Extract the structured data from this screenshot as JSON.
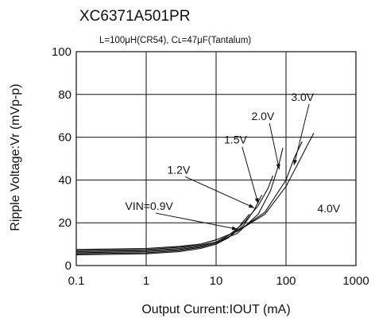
{
  "header": {
    "title": "XC6371A501PR",
    "conditions": "L=100μH(CR54),  Cʟ=47μF(Tantalum)"
  },
  "chart_data": {
    "type": "line",
    "xlabel": "Output Current:IOUT (mA)",
    "ylabel": "Ripple Voltage:Vr  (mVp-p)",
    "xscale": "log",
    "xlim": [
      0.1,
      1000
    ],
    "ylim": [
      0,
      100
    ],
    "xticks": [
      "0.1",
      "1",
      "10",
      "100",
      "1000"
    ],
    "yticks": [
      "0",
      "20",
      "40",
      "60",
      "80",
      "100"
    ],
    "grid": true,
    "series": [
      {
        "name": "VIN=0.9V",
        "x": [
          0.1,
          1,
          3,
          6,
          10,
          15,
          20,
          25,
          30
        ],
        "y": [
          5,
          5.5,
          6.5,
          8,
          10,
          13,
          17,
          21,
          24
        ]
      },
      {
        "name": "1.2V",
        "x": [
          0.1,
          1,
          3,
          6,
          10,
          15,
          25,
          35,
          45
        ],
        "y": [
          5.5,
          6,
          7,
          8.5,
          10.5,
          13,
          19,
          26,
          33
        ]
      },
      {
        "name": "1.5V",
        "x": [
          0.1,
          1,
          3,
          6,
          10,
          15,
          25,
          40,
          55,
          65
        ],
        "y": [
          6,
          6.5,
          7.5,
          9,
          11,
          14,
          20,
          28,
          36,
          42
        ]
      },
      {
        "name": "2.0V",
        "x": [
          0.1,
          1,
          3,
          6,
          10,
          20,
          40,
          60,
          80,
          90
        ],
        "y": [
          6.5,
          7,
          8,
          9.5,
          11,
          15,
          24,
          35,
          48,
          55
        ]
      },
      {
        "name": "3.0V",
        "x": [
          0.1,
          1,
          3,
          6,
          10,
          20,
          50,
          100,
          130,
          170
        ],
        "y": [
          7,
          7.5,
          8.5,
          10,
          12,
          16,
          25,
          40,
          50,
          58
        ]
      },
      {
        "name": "4.0V",
        "x": [
          0.1,
          1,
          3,
          6,
          10,
          20,
          50,
          100,
          150,
          200,
          250
        ],
        "y": [
          7.5,
          8,
          9,
          10,
          12,
          16,
          24,
          37,
          48,
          56,
          62
        ]
      }
    ],
    "annotations": [
      {
        "text": "VIN=0.9V",
        "series": "VIN=0.9V",
        "x": 0.5,
        "y": 26,
        "arrow_to": {
          "x": 20,
          "y": 17
        }
      },
      {
        "text": "1.2V",
        "series": "1.2V",
        "x": 2.0,
        "y": 43,
        "arrow_to": {
          "x": 35,
          "y": 27
        }
      },
      {
        "text": "1.5V",
        "series": "1.5V",
        "x": 13,
        "y": 57,
        "arrow_to": {
          "x": 40,
          "y": 29
        }
      },
      {
        "text": "2.0V",
        "series": "2.0V",
        "x": 32,
        "y": 68,
        "arrow_to": {
          "x": 80,
          "y": 45
        }
      },
      {
        "text": "3.0V",
        "series": "3.0V",
        "x": 118,
        "y": 77,
        "arrow_to": {
          "x": 130,
          "y": 47
        }
      },
      {
        "text": "4.0V",
        "series": "4.0V",
        "x": 280,
        "y": 25,
        "arrow_to": null
      }
    ]
  }
}
